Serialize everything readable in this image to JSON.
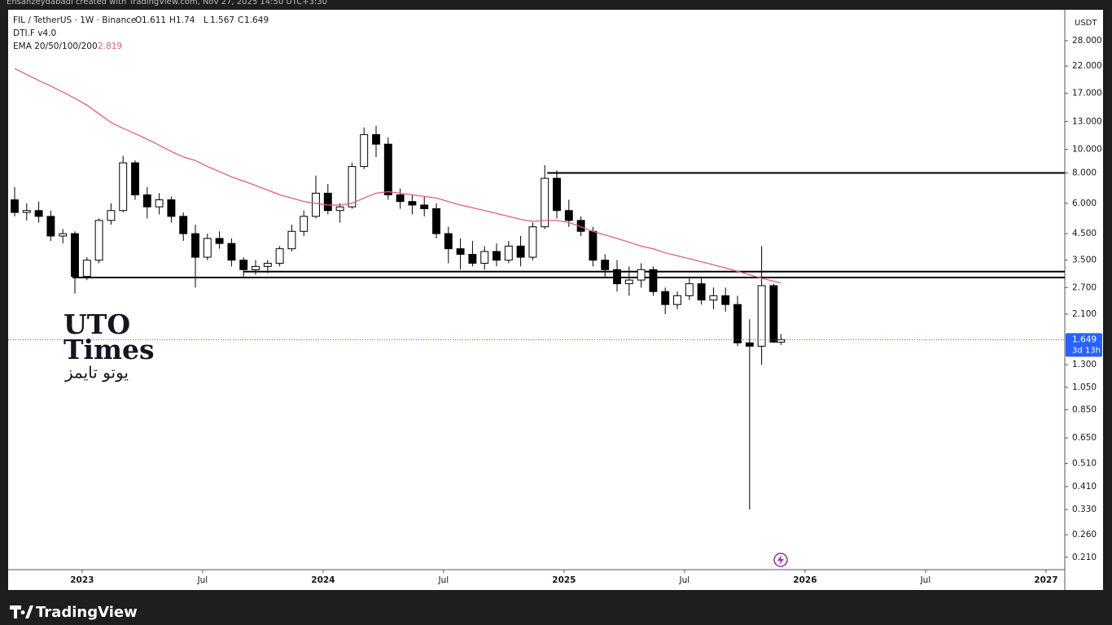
{
  "header": {
    "credit": "Ehsanzeydabadi created with TradingView.com, Nov 27, 2025 14:50 UTC+3:30"
  },
  "chart_data": {
    "type": "candlestick",
    "symbol": "FIL / TetherUS · 1W · Binance",
    "ohlc_labels": [
      "O",
      "H",
      "L",
      "C"
    ],
    "indicator": "DTI.F v4.0",
    "ema_label": "EMA 20/50/100/200",
    "ema_value": 2.819,
    "currency": "USDT",
    "countdown": "3d 13h",
    "log_scale": true,
    "up_color": "#ffffff",
    "down_color": "#000000",
    "x": [
      2022.72,
      2022.77,
      2022.82,
      2022.87,
      2022.92,
      2022.97,
      2023.02,
      2023.07,
      2023.12,
      2023.17,
      2023.22,
      2023.27,
      2023.32,
      2023.37,
      2023.42,
      2023.47,
      2023.52,
      2023.57,
      2023.62,
      2023.67,
      2023.72,
      2023.77,
      2023.82,
      2023.87,
      2023.92,
      2023.97,
      2024.02,
      2024.07,
      2024.12,
      2024.17,
      2024.22,
      2024.27,
      2024.32,
      2024.37,
      2024.42,
      2024.47,
      2024.52,
      2024.57,
      2024.62,
      2024.67,
      2024.72,
      2024.77,
      2024.82,
      2024.87,
      2024.92,
      2024.97,
      2025.02,
      2025.07,
      2025.12,
      2025.17,
      2025.22,
      2025.27,
      2025.32,
      2025.37,
      2025.42,
      2025.47,
      2025.52,
      2025.57,
      2025.62,
      2025.67,
      2025.72,
      2025.77,
      2025.82,
      2025.87,
      2025.9
    ],
    "open": [
      6.2,
      5.5,
      5.6,
      5.3,
      4.4,
      4.5,
      3.0,
      3.5,
      5.1,
      5.6,
      8.8,
      6.5,
      5.8,
      6.2,
      5.3,
      4.5,
      3.6,
      4.3,
      4.1,
      3.5,
      3.2,
      3.3,
      3.4,
      3.9,
      4.6,
      5.3,
      6.6,
      5.6,
      5.8,
      8.5,
      11.5,
      10.5,
      6.5,
      6.1,
      5.9,
      5.7,
      4.5,
      3.9,
      3.7,
      3.4,
      3.8,
      3.5,
      4.0,
      3.6,
      4.8,
      7.6,
      5.6,
      5.1,
      4.6,
      3.5,
      3.2,
      2.8,
      2.9,
      3.2,
      2.6,
      2.3,
      2.5,
      2.8,
      2.4,
      2.5,
      2.3,
      1.6,
      1.55,
      2.75,
      1.611
    ],
    "high": [
      7.0,
      6.0,
      6.1,
      5.6,
      4.7,
      4.6,
      3.6,
      5.2,
      6.0,
      9.4,
      9.0,
      7.0,
      6.6,
      6.4,
      5.5,
      4.9,
      4.5,
      4.6,
      4.3,
      3.6,
      3.5,
      3.5,
      4.0,
      4.9,
      5.6,
      7.8,
      7.2,
      6.0,
      8.8,
      12.3,
      12.5,
      11.2,
      6.9,
      6.5,
      6.4,
      6.0,
      4.8,
      4.3,
      4.2,
      4.0,
      4.1,
      4.2,
      4.4,
      5.0,
      8.6,
      8.2,
      6.2,
      5.3,
      4.8,
      3.7,
      3.5,
      3.3,
      3.4,
      3.3,
      2.7,
      2.6,
      3.0,
      3.0,
      2.7,
      2.7,
      2.5,
      2.0,
      4.0,
      2.8,
      1.74
    ],
    "low": [
      5.3,
      5.1,
      5.0,
      4.2,
      4.1,
      2.55,
      2.9,
      3.4,
      4.9,
      5.5,
      6.2,
      5.2,
      5.4,
      5.0,
      4.2,
      2.7,
      3.5,
      3.9,
      3.3,
      3.0,
      3.05,
      3.1,
      3.3,
      3.8,
      4.4,
      5.2,
      5.4,
      5.0,
      5.7,
      8.3,
      9.3,
      6.2,
      5.7,
      5.4,
      5.3,
      4.3,
      3.4,
      3.2,
      3.3,
      3.2,
      3.3,
      3.4,
      3.3,
      3.5,
      4.7,
      5.2,
      4.8,
      4.4,
      3.3,
      3.0,
      2.6,
      2.5,
      2.7,
      2.5,
      2.1,
      2.2,
      2.4,
      2.3,
      2.2,
      2.15,
      1.55,
      0.33,
      1.3,
      1.6,
      1.567
    ],
    "close": [
      5.5,
      5.6,
      5.3,
      4.4,
      4.5,
      3.0,
      3.5,
      5.1,
      5.6,
      8.8,
      6.5,
      5.8,
      6.2,
      5.3,
      4.5,
      3.6,
      4.3,
      4.1,
      3.5,
      3.2,
      3.3,
      3.4,
      3.9,
      4.6,
      5.3,
      6.6,
      5.6,
      5.8,
      8.5,
      11.5,
      10.5,
      6.5,
      6.1,
      5.9,
      5.7,
      4.5,
      3.9,
      3.7,
      3.4,
      3.8,
      3.5,
      4.0,
      3.6,
      4.8,
      7.6,
      5.6,
      5.1,
      4.6,
      3.5,
      3.2,
      2.8,
      2.9,
      3.2,
      2.6,
      2.3,
      2.5,
      2.8,
      2.4,
      2.5,
      2.3,
      1.6,
      1.55,
      2.75,
      1.611,
      1.649
    ],
    "ema": {
      "color": "#e0607a",
      "values": [
        21.5,
        20.3,
        19.2,
        18.2,
        17.2,
        16.2,
        15.2,
        14.0,
        12.9,
        12.2,
        11.6,
        11.0,
        10.4,
        9.8,
        9.3,
        9.0,
        8.5,
        8.1,
        7.7,
        7.4,
        7.1,
        6.8,
        6.5,
        6.3,
        6.1,
        6.0,
        5.9,
        5.9,
        6.0,
        6.3,
        6.6,
        6.7,
        6.6,
        6.5,
        6.4,
        6.3,
        6.1,
        5.9,
        5.75,
        5.6,
        5.45,
        5.3,
        5.15,
        5.05,
        5.1,
        5.1,
        5.0,
        4.8,
        4.6,
        4.45,
        4.3,
        4.15,
        4.0,
        3.9,
        3.75,
        3.65,
        3.55,
        3.45,
        3.35,
        3.25,
        3.15,
        3.05,
        2.95,
        2.87,
        2.819
      ]
    },
    "levels": [
      {
        "value": 8.0,
        "from": 2024.93
      },
      {
        "value": 3.14,
        "from": 2023.67
      },
      {
        "value": 2.97,
        "from": 2022.96
      }
    ],
    "last_price_color": "#2962ff",
    "xlim": [
      2022.693,
      2027.078
    ],
    "ylim": [
      0.154,
      37.5
    ],
    "xticks": [
      2023,
      {
        "value": 2023.5,
        "label": "Jul"
      },
      2024,
      {
        "value": 2024.5,
        "label": "Jul"
      },
      2025,
      {
        "value": 2025.5,
        "label": "Jul"
      },
      2026,
      {
        "value": 2026.5,
        "label": "Jul"
      },
      2027
    ],
    "yticks": [
      {
        "value": 28,
        "label": "28.000"
      },
      {
        "value": 22,
        "label": "22.000"
      },
      {
        "value": 17,
        "label": "17.000"
      },
      {
        "value": 13,
        "label": "13.000"
      },
      {
        "value": 10,
        "label": "10.000"
      },
      {
        "value": 8,
        "label": "8.000"
      },
      {
        "value": 6,
        "label": "6.000"
      },
      {
        "value": 4.5,
        "label": "4.500"
      },
      {
        "value": 3.5,
        "label": "3.500"
      },
      {
        "value": 2.7,
        "label": "2.700"
      },
      {
        "value": 2.1,
        "label": "2.100"
      },
      {
        "value": 1.3,
        "label": "1.300"
      },
      {
        "value": 1.05,
        "label": "1.050"
      },
      {
        "value": 0.85,
        "label": "0.850"
      },
      {
        "value": 0.65,
        "label": "0.650"
      },
      {
        "value": 0.51,
        "label": "0.510"
      },
      {
        "value": 0.41,
        "label": "0.410"
      },
      {
        "value": 0.33,
        "label": "0.330"
      },
      {
        "value": 0.26,
        "label": "0.260"
      },
      {
        "value": 0.21,
        "label": "0.210"
      }
    ]
  },
  "watermark": {
    "lines": [
      "UTO",
      "Times"
    ],
    "arabic": "یوتو تایمز"
  },
  "footer": {
    "brand": "TradingView"
  }
}
